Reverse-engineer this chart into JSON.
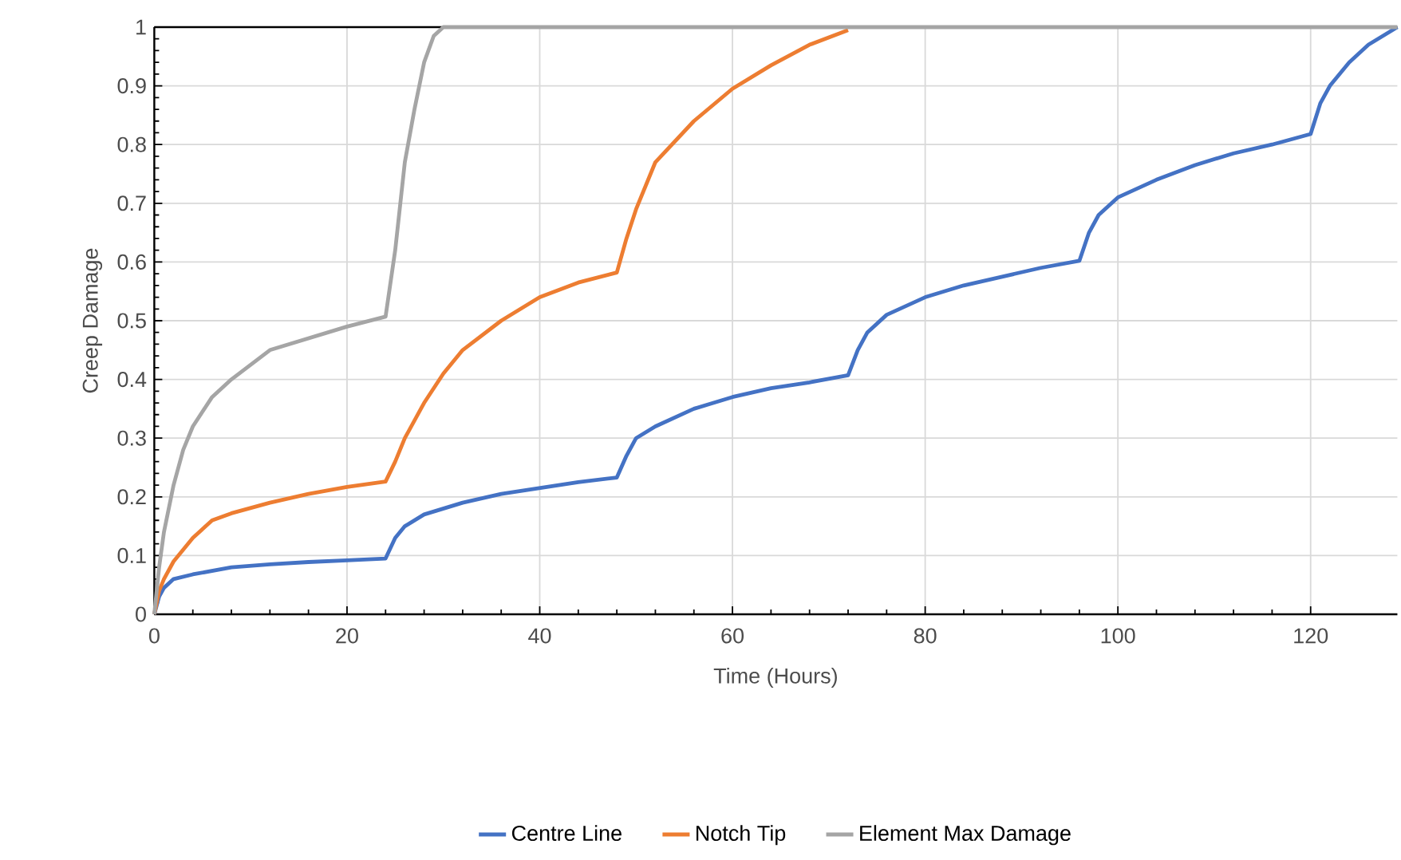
{
  "chart_data": {
    "type": "line",
    "xlabel": "Time (Hours)",
    "ylabel": "Creep Damage",
    "xlim": [
      0,
      129
    ],
    "xticks": [
      0,
      20,
      40,
      60,
      80,
      100,
      120
    ],
    "ylim": [
      0,
      1
    ],
    "yticks": [
      0,
      0.1,
      0.2,
      0.3,
      0.4,
      0.5,
      0.6,
      0.7,
      0.8,
      0.9,
      1
    ],
    "grid": true,
    "legend": "bottom",
    "series": [
      {
        "name": "Centre Line",
        "color": "#4472c4",
        "x": [
          0,
          0.5,
          1,
          2,
          4,
          8,
          12,
          16,
          20,
          24,
          25,
          26,
          28,
          32,
          36,
          40,
          44,
          48,
          49,
          50,
          52,
          56,
          60,
          64,
          68,
          72,
          73,
          74,
          76,
          80,
          84,
          88,
          92,
          96,
          97,
          98,
          100,
          104,
          108,
          112,
          116,
          120,
          121,
          122,
          124,
          126,
          128,
          129
        ],
        "values": [
          0,
          0.03,
          0.045,
          0.06,
          0.068,
          0.08,
          0.085,
          0.089,
          0.092,
          0.095,
          0.13,
          0.15,
          0.17,
          0.19,
          0.205,
          0.215,
          0.225,
          0.233,
          0.27,
          0.3,
          0.32,
          0.35,
          0.37,
          0.385,
          0.395,
          0.407,
          0.45,
          0.48,
          0.51,
          0.54,
          0.56,
          0.575,
          0.59,
          0.602,
          0.65,
          0.68,
          0.71,
          0.74,
          0.765,
          0.785,
          0.8,
          0.818,
          0.87,
          0.9,
          0.94,
          0.97,
          0.99,
          1
        ]
      },
      {
        "name": "Notch Tip",
        "color": "#ed7d31",
        "x": [
          0,
          0.5,
          1,
          2,
          4,
          6,
          8,
          12,
          16,
          20,
          24,
          25,
          26,
          28,
          30,
          32,
          36,
          40,
          44,
          48,
          49,
          50,
          52,
          56,
          60,
          64,
          68,
          72
        ],
        "values": [
          0,
          0.04,
          0.06,
          0.09,
          0.13,
          0.16,
          0.172,
          0.19,
          0.205,
          0.217,
          0.226,
          0.26,
          0.3,
          0.36,
          0.41,
          0.45,
          0.5,
          0.54,
          0.565,
          0.582,
          0.64,
          0.69,
          0.77,
          0.84,
          0.895,
          0.935,
          0.97,
          0.995
        ]
      },
      {
        "name": "Element Max Damage",
        "color": "#a5a5a5",
        "x": [
          0,
          0.5,
          1,
          2,
          3,
          4,
          6,
          8,
          12,
          16,
          20,
          24,
          25,
          26,
          27,
          28,
          29,
          30,
          129
        ],
        "values": [
          0,
          0.08,
          0.14,
          0.22,
          0.28,
          0.32,
          0.37,
          0.4,
          0.45,
          0.47,
          0.49,
          0.507,
          0.62,
          0.77,
          0.86,
          0.94,
          0.985,
          1,
          1
        ]
      }
    ]
  }
}
